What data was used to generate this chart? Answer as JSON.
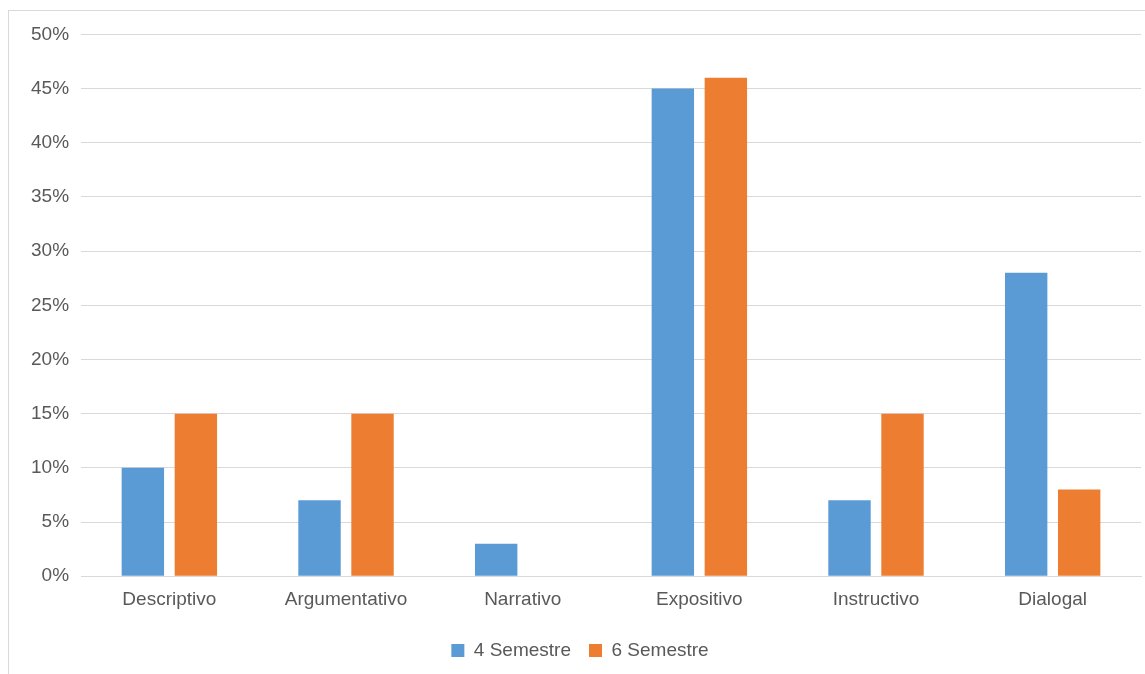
{
  "chart_data": {
    "type": "bar",
    "categories": [
      "Descriptivo",
      "Argumentativo",
      "Narrativo",
      "Expositivo",
      "Instructivo",
      "Dialogal"
    ],
    "series": [
      {
        "name": "4 Semestre",
        "color": "#5b9bd5",
        "values": [
          10,
          7,
          3,
          45,
          7,
          28
        ]
      },
      {
        "name": "6 Semestre",
        "color": "#ed7d31",
        "values": [
          15,
          15,
          0,
          46,
          15,
          8
        ]
      }
    ],
    "ylim": [
      0,
      50
    ],
    "yticks": [
      {
        "value": 0,
        "label": "0%"
      },
      {
        "value": 5,
        "label": "5%"
      },
      {
        "value": 10,
        "label": "10%"
      },
      {
        "value": 15,
        "label": "15%"
      },
      {
        "value": 20,
        "label": "20%"
      },
      {
        "value": 25,
        "label": "25%"
      },
      {
        "value": 30,
        "label": "30%"
      },
      {
        "value": 35,
        "label": "35%"
      },
      {
        "value": 40,
        "label": "40%"
      },
      {
        "value": 45,
        "label": "45%"
      },
      {
        "value": 50,
        "label": "50%"
      }
    ],
    "grid": "y",
    "legend": "bottom"
  }
}
